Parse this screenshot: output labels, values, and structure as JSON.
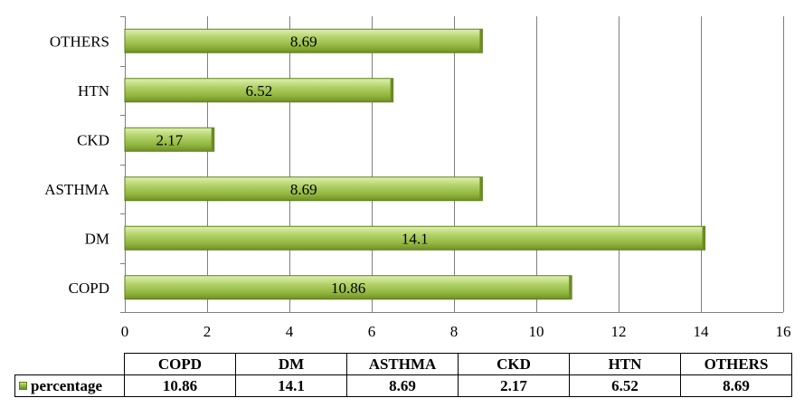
{
  "chart_data": {
    "type": "bar",
    "orientation": "horizontal",
    "categories": [
      "COPD",
      "DM",
      "ASTHMA",
      "CKD",
      "HTN",
      "OTHERS"
    ],
    "series": [
      {
        "name": "percentage",
        "values": [
          10.86,
          14.1,
          8.69,
          2.17,
          6.52,
          8.69
        ]
      }
    ],
    "value_labels": [
      "10.86",
      "14.1",
      "8.69",
      "2.17",
      "6.52",
      "8.69"
    ],
    "xlim": [
      0,
      16
    ],
    "x_ticks": [
      0,
      2,
      4,
      6,
      8,
      10,
      12,
      14,
      16
    ],
    "grid": "vertical",
    "legend": "in data table",
    "title": "",
    "xlabel": "",
    "ylabel": "",
    "bar_color": "#9bbb59"
  }
}
